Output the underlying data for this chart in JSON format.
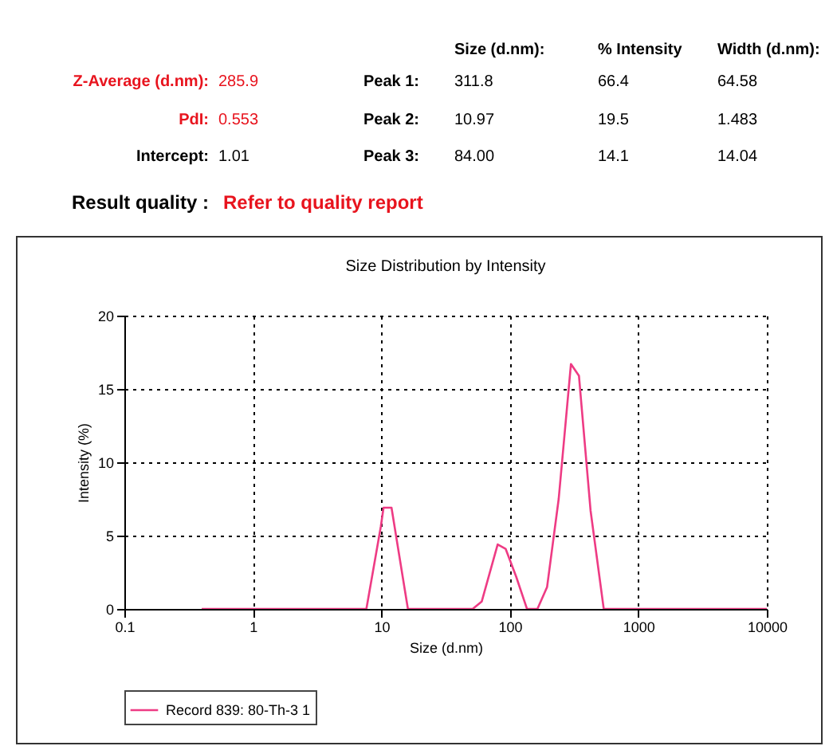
{
  "chart_data": {
    "type": "line",
    "title": "Size Distribution by Intensity",
    "xlabel": "Size (d.nm)",
    "ylabel": "Intensity (%)",
    "annotations": [
      "Size (d.nm):",
      "% Intensity",
      "Width (d.nm):",
      "Z-Average (d.nm):",
      "285.9",
      "Peak 1:",
      "311.8",
      "66.4",
      "64.58",
      "PdI:",
      "0.553",
      "Peak 2:",
      "10.97",
      "19.5",
      "1.483",
      "Intercept:",
      "1.01",
      "Peak 3:",
      "84.00",
      "14.1",
      "14.04",
      "Result quality :",
      "Refer to quality report"
    ],
    "log": "x",
    "xlim": [
      0.1,
      10000
    ],
    "xticks": [
      0.1,
      1,
      10,
      100,
      1000,
      10000
    ],
    "ylim": [
      0,
      20
    ],
    "yticks": [
      0,
      5,
      10,
      15,
      20
    ],
    "grid": true,
    "legend": "bottom",
    "marker": "none",
    "line_style": "solid",
    "series": [
      {
        "name": "Record 839: 80-Th-3 1",
        "color": "#ee3b84",
        "x": [
          0.4,
          7.65,
          9.9,
          10.4,
          12.0,
          16.1,
          51.4,
          60.4,
          80.4,
          92.7,
          112,
          136,
          164,
          195,
          240,
          299,
          345,
          425,
          538,
          10000
        ],
        "values": [
          0,
          0,
          5.6,
          6.9,
          6.9,
          0,
          0,
          0.5,
          4.4,
          4.1,
          2.2,
          0,
          0,
          1.5,
          7.5,
          16.7,
          15.9,
          6.7,
          0,
          0
        ]
      }
    ]
  }
}
